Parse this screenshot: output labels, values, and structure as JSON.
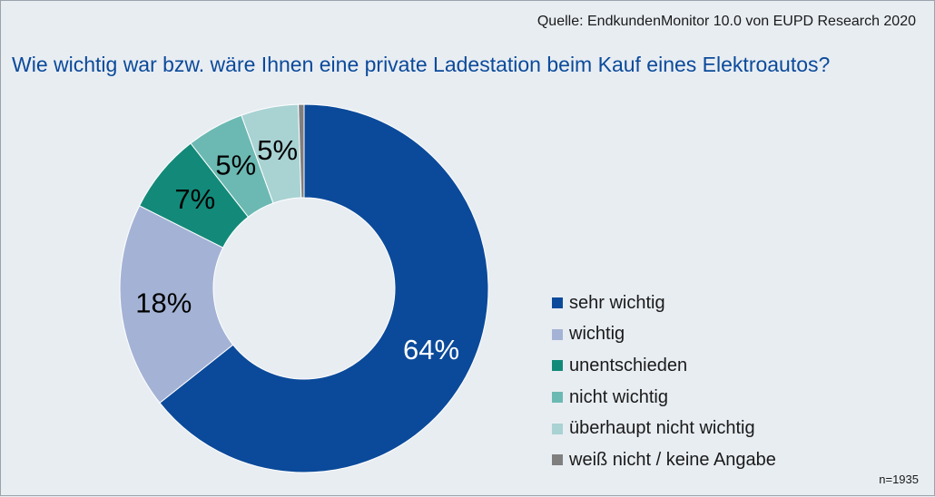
{
  "header": {
    "source": "Quelle: EndkundenMonitor 10.0 von EUPD Research 2020",
    "title": "Wie wichtig war bzw. wäre Ihnen eine private Ladestation beim Kauf eines Elektroautos?"
  },
  "footer": {
    "n": "n=1935"
  },
  "chart_data": {
    "type": "pie",
    "variant": "donut",
    "title": "Wie wichtig war bzw. wäre Ihnen eine private Ladestation beim Kauf eines Elektroautos?",
    "legend_position": "right",
    "slices": [
      {
        "label": "sehr wichtig",
        "value": 64,
        "display": "64%",
        "color": "#0b4a9a",
        "label_color": "#ffffff"
      },
      {
        "label": "wichtig",
        "value": 18,
        "display": "18%",
        "color": "#a4b3d5",
        "label_color": "#000000"
      },
      {
        "label": "unentschieden",
        "value": 7,
        "display": "7%",
        "color": "#138a79",
        "label_color": "#000000"
      },
      {
        "label": "nicht wichtig",
        "value": 5,
        "display": "5%",
        "color": "#6cb9b3",
        "label_color": "#000000"
      },
      {
        "label": "überhaupt nicht wichtig",
        "value": 5,
        "display": "5%",
        "color": "#a9d2d3",
        "label_color": "#000000"
      },
      {
        "label": "weiß nicht / keine Angabe",
        "value": 0.5,
        "display": "",
        "color": "#7f7f7f",
        "label_color": "#000000"
      }
    ]
  }
}
